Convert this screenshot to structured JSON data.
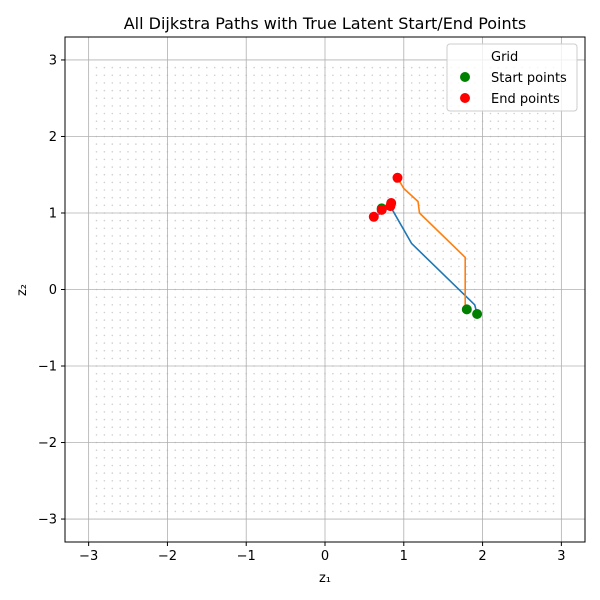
{
  "chart_data": {
    "type": "line",
    "title": "All Dijkstra Paths with True Latent Start/End Points",
    "xlabel": "z₁",
    "ylabel": "z₂",
    "xlim": [
      -3.3,
      3.3
    ],
    "ylim": [
      -3.3,
      3.3
    ],
    "xticks": [
      -3,
      -2,
      -1,
      0,
      1,
      2,
      3
    ],
    "yticks": [
      -3,
      -2,
      -1,
      0,
      1,
      2,
      3
    ],
    "xtick_labels": [
      "−3",
      "−2",
      "−1",
      "0",
      "1",
      "2",
      "3"
    ],
    "ytick_labels": [
      "−3",
      "−2",
      "−1",
      "0",
      "1",
      "2",
      "3"
    ],
    "grid": true,
    "legend_position": "top-right",
    "grid_points": {
      "name": "Grid",
      "range": [
        -2.9,
        2.9
      ],
      "step": 0.1,
      "color": "#cfcfcf"
    },
    "paths": [
      {
        "color": "#1f77b4",
        "points": [
          [
            1.93,
            -0.32
          ],
          [
            1.9,
            -0.2
          ],
          [
            1.82,
            -0.12
          ],
          [
            1.1,
            0.6
          ],
          [
            0.85,
            1.05
          ],
          [
            0.8,
            1.15
          ],
          [
            0.75,
            1.02
          ],
          [
            0.68,
            1.05
          ]
        ]
      },
      {
        "color": "#ff7f0e",
        "points": [
          [
            1.8,
            -0.26
          ],
          [
            1.78,
            -0.22
          ],
          [
            1.78,
            0.42
          ],
          [
            1.2,
            1.0
          ],
          [
            1.18,
            1.15
          ],
          [
            1.0,
            1.32
          ],
          [
            0.92,
            1.46
          ]
        ]
      },
      {
        "color": "#9467bd",
        "points": [
          [
            0.62,
            0.95
          ],
          [
            0.72,
            1.0
          ],
          [
            0.85,
            1.1
          ]
        ]
      }
    ],
    "series": [
      {
        "name": "Start points",
        "color": "#008000",
        "points": [
          [
            1.93,
            -0.32
          ],
          [
            1.8,
            -0.26
          ],
          [
            0.72,
            1.06
          ]
        ]
      },
      {
        "name": "End points",
        "color": "#ff0000",
        "points": [
          [
            0.92,
            1.46
          ],
          [
            0.84,
            1.13
          ],
          [
            0.83,
            1.09
          ],
          [
            0.62,
            0.95
          ],
          [
            0.72,
            1.04
          ]
        ]
      }
    ]
  }
}
